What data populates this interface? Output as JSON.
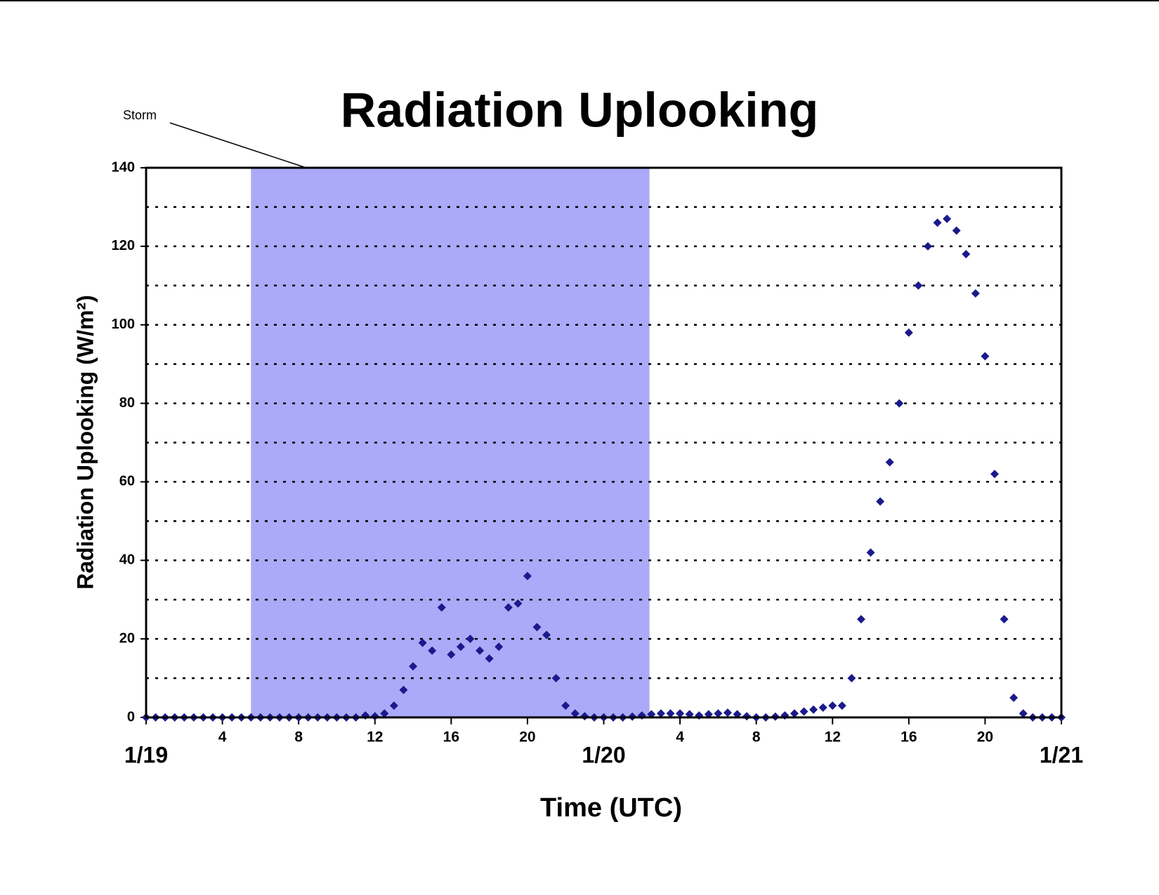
{
  "chart_data": {
    "type": "scatter",
    "title": "Radiation Uplooking",
    "xlabel": "Time (UTC)",
    "ylabel": "Radiation Uplooking (W/m²)",
    "annotation": {
      "text": "Storm",
      "xlim": [
        5.5,
        26.4
      ],
      "color": "#aaaaf8"
    },
    "x": [
      0,
      0.5,
      1,
      1.5,
      2,
      2.5,
      3,
      3.5,
      4,
      4.5,
      5,
      5.5,
      6,
      6.5,
      7,
      7.5,
      8,
      8.5,
      9,
      9.5,
      10,
      10.5,
      11,
      11.5,
      12,
      12.5,
      13,
      13.5,
      14,
      14.5,
      15,
      15.5,
      16,
      16.5,
      17,
      17.5,
      18,
      18.5,
      19,
      19.5,
      20,
      20.5,
      21,
      21.5,
      22,
      22.5,
      23,
      23.5,
      24,
      24.5,
      25,
      25.5,
      26,
      26.5,
      27,
      27.5,
      28,
      28.5,
      29,
      29.5,
      30,
      30.5,
      31,
      31.5,
      32,
      32.5,
      33,
      33.5,
      34,
      34.5,
      35,
      35.5,
      36,
      36.5,
      37,
      37.5,
      38,
      38.5,
      39,
      39.5,
      40,
      40.5,
      41,
      41.5,
      42,
      42.5,
      43,
      43.5,
      44,
      44.5,
      45,
      45.5,
      46,
      46.5,
      47,
      47.5,
      48
    ],
    "series": [
      {
        "name": "Radiation Uplooking",
        "color": "#1a1a8c",
        "values": [
          0,
          0,
          0,
          0,
          0,
          0,
          0,
          0,
          0,
          0,
          0,
          0,
          0,
          0,
          0,
          0,
          0,
          0,
          0,
          0,
          0,
          0,
          0,
          0.5,
          0.3,
          1,
          3,
          7,
          13,
          19,
          17,
          28,
          16,
          18,
          20,
          17,
          15,
          18,
          28,
          29,
          36,
          23,
          21,
          10,
          3,
          1,
          0.3,
          0,
          0,
          0,
          0,
          0.2,
          0.5,
          0.8,
          1,
          1,
          1,
          0.8,
          0.5,
          0.8,
          1,
          1.2,
          0.8,
          0.3,
          0,
          0,
          0.2,
          0.5,
          1,
          1.5,
          2,
          2.5,
          3,
          3,
          10,
          25,
          42,
          55,
          65,
          80,
          98,
          110,
          120,
          126,
          127,
          124,
          118,
          108,
          92,
          62,
          25,
          5,
          1,
          0,
          0,
          0,
          0
        ]
      }
    ],
    "xlim": [
      0,
      48
    ],
    "xticks": [
      {
        "value": 0,
        "label": "1/19"
      },
      4,
      8,
      12,
      16,
      20,
      {
        "value": 24,
        "label": "1/20"
      },
      {
        "value": 28,
        "label": "4"
      },
      {
        "value": 32,
        "label": "8"
      },
      {
        "value": 36,
        "label": "12"
      },
      {
        "value": 40,
        "label": "16"
      },
      {
        "value": 44,
        "label": "20"
      },
      {
        "value": 48,
        "label": "1/21"
      }
    ],
    "ylim": [
      0,
      140
    ],
    "yticks": [
      0,
      20,
      40,
      60,
      80,
      100,
      120,
      140
    ],
    "ygrid": [
      10,
      20,
      30,
      40,
      50,
      60,
      70,
      80,
      90,
      100,
      110,
      120,
      130
    ]
  }
}
